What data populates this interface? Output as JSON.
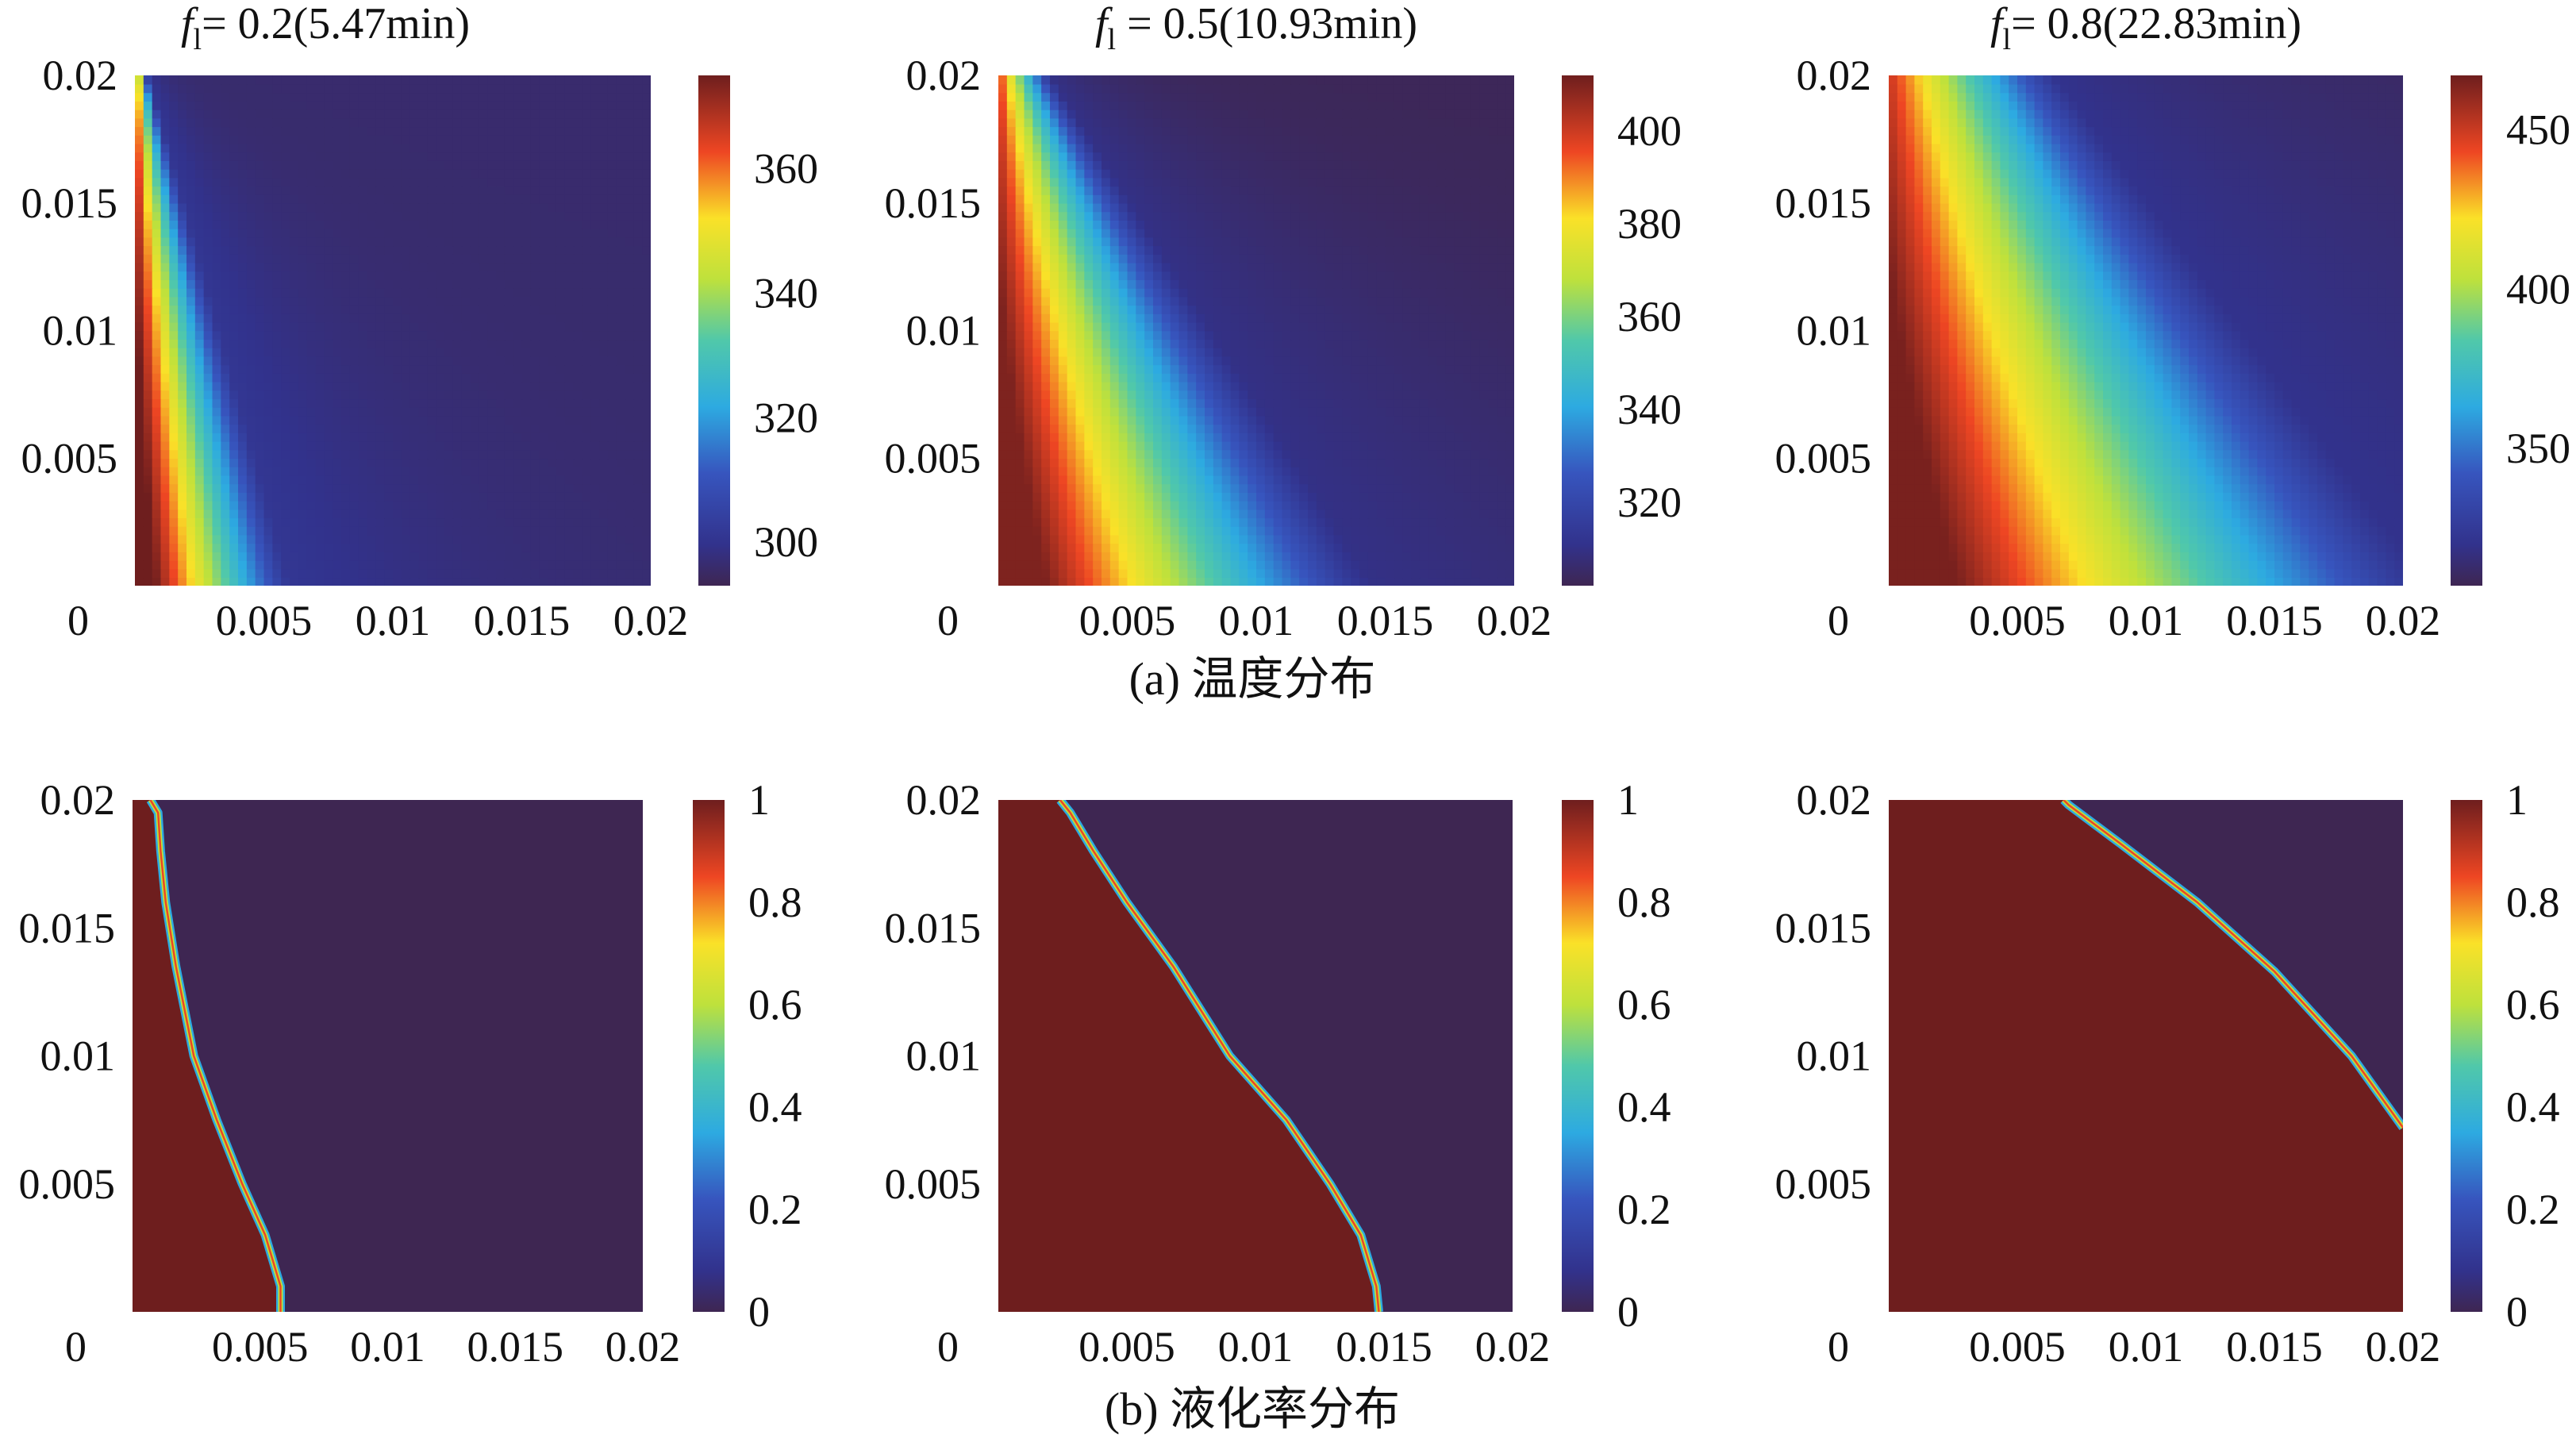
{
  "figure": {
    "captions": [
      {
        "text": "(a) 温度分布"
      },
      {
        "text": "(b) 液化率分布"
      }
    ]
  },
  "chart_data": [
    {
      "type": "heatmap",
      "title": "fl= 0.2(5.47min)",
      "title_parts": {
        "f": "f",
        "sub": "l",
        "rest": "= 0.2(5.47min)"
      },
      "quantity": "temperature",
      "x_ticks": [
        "0.005",
        "0.01",
        "0.015",
        "0.02"
      ],
      "y_ticks": [
        "0.02",
        "0.015",
        "0.01",
        "0.005"
      ],
      "origin_label": "0",
      "xlim": [
        0,
        0.02
      ],
      "ylim": [
        0,
        0.02
      ],
      "colorbar": {
        "min": 293,
        "max": 375,
        "ticks": [
          "360",
          "340",
          "320",
          "300"
        ],
        "tick_values": [
          360,
          340,
          320,
          300
        ]
      },
      "hot_corner_value": 375,
      "cold_value": 296,
      "front_x_at_bottom": 0.006,
      "front_x_at_top": 0.0005,
      "cmap": "jet-dark"
    },
    {
      "type": "heatmap",
      "title": "fl = 0.5(10.93min)",
      "title_parts": {
        "f": "f",
        "sub": "l",
        "rest": " = 0.5(10.93min)"
      },
      "quantity": "temperature",
      "x_ticks": [
        "0.005",
        "0.01",
        "0.015",
        "0.02"
      ],
      "y_ticks": [
        "0.02",
        "0.015",
        "0.01",
        "0.005"
      ],
      "origin_label": "0",
      "xlim": [
        0,
        0.02
      ],
      "ylim": [
        0,
        0.02
      ],
      "colorbar": {
        "min": 302,
        "max": 412,
        "ticks": [
          "400",
          "380",
          "360",
          "340",
          "320"
        ],
        "tick_values": [
          400,
          380,
          360,
          340,
          320
        ]
      },
      "hot_corner_value": 410,
      "cold_value": 303,
      "front_x_at_bottom": 0.0145,
      "front_x_at_top": 0.002,
      "cmap": "jet-dark"
    },
    {
      "type": "heatmap",
      "title": "fl= 0.8(22.83min)",
      "title_parts": {
        "f": "f",
        "sub": "l",
        "rest": "= 0.8(22.83min)"
      },
      "quantity": "temperature",
      "x_ticks": [
        "0.005",
        "0.01",
        "0.015",
        "0.02"
      ],
      "y_ticks": [
        "0.02",
        "0.015",
        "0.01",
        "0.005"
      ],
      "origin_label": "0",
      "xlim": [
        0,
        0.02
      ],
      "ylim": [
        0,
        0.02
      ],
      "colorbar": {
        "min": 307,
        "max": 467,
        "ticks": [
          "450",
          "400",
          "350"
        ],
        "tick_values": [
          450,
          400,
          350
        ]
      },
      "hot_corner_value": 465,
      "cold_value": 310,
      "front_x_at_bottom": 0.021,
      "front_x_at_top": 0.0065,
      "cmap": "jet-dark"
    },
    {
      "type": "heatmap",
      "quantity": "liquid fraction",
      "x_ticks": [
        "0.005",
        "0.01",
        "0.015",
        "0.02"
      ],
      "y_ticks": [
        "0.02",
        "0.015",
        "0.01",
        "0.005"
      ],
      "origin_label": "0",
      "xlim": [
        0,
        0.02
      ],
      "ylim": [
        0,
        0.02
      ],
      "colorbar": {
        "min": 0,
        "max": 1,
        "ticks": [
          "1",
          "0.8",
          "0.6",
          "0.4",
          "0.2",
          "0"
        ],
        "tick_values": [
          1,
          0.8,
          0.6,
          0.4,
          0.2,
          0
        ]
      },
      "interface": [
        [
          0.0058,
          0.0
        ],
        [
          0.0058,
          0.001
        ],
        [
          0.0052,
          0.003
        ],
        [
          0.0043,
          0.005
        ],
        [
          0.0033,
          0.0075
        ],
        [
          0.0024,
          0.01
        ],
        [
          0.0017,
          0.0135
        ],
        [
          0.0013,
          0.016
        ],
        [
          0.0011,
          0.018
        ],
        [
          0.001,
          0.0195
        ],
        [
          0.0007,
          0.02
        ]
      ],
      "cmap": "jet-dark"
    },
    {
      "type": "heatmap",
      "quantity": "liquid fraction",
      "x_ticks": [
        "0.005",
        "0.01",
        "0.015",
        "0.02"
      ],
      "y_ticks": [
        "0.02",
        "0.015",
        "0.01",
        "0.005"
      ],
      "origin_label": "0",
      "xlim": [
        0,
        0.02
      ],
      "ylim": [
        0,
        0.02
      ],
      "colorbar": {
        "min": 0,
        "max": 1,
        "ticks": [
          "1",
          "0.8",
          "0.6",
          "0.4",
          "0.2",
          "0"
        ],
        "tick_values": [
          1,
          0.8,
          0.6,
          0.4,
          0.2,
          0
        ]
      },
      "interface": [
        [
          0.0148,
          0.0
        ],
        [
          0.0147,
          0.001
        ],
        [
          0.0141,
          0.003
        ],
        [
          0.0129,
          0.005
        ],
        [
          0.0112,
          0.0075
        ],
        [
          0.009,
          0.01
        ],
        [
          0.0068,
          0.0135
        ],
        [
          0.005,
          0.016
        ],
        [
          0.0037,
          0.018
        ],
        [
          0.0028,
          0.0195
        ],
        [
          0.0024,
          0.02
        ]
      ],
      "cmap": "jet-dark"
    },
    {
      "type": "heatmap",
      "quantity": "liquid fraction",
      "x_ticks": [
        "0.005",
        "0.01",
        "0.015",
        "0.02"
      ],
      "y_ticks": [
        "0.02",
        "0.015",
        "0.01",
        "0.005"
      ],
      "origin_label": "0",
      "xlim": [
        0,
        0.02
      ],
      "ylim": [
        0,
        0.02
      ],
      "colorbar": {
        "min": 0,
        "max": 1,
        "ticks": [
          "1",
          "0.8",
          "0.6",
          "0.4",
          "0.2",
          "0"
        ],
        "tick_values": [
          1,
          0.8,
          0.6,
          0.4,
          0.2,
          0
        ]
      },
      "interface": [
        [
          0.02,
          0.0072
        ],
        [
          0.018,
          0.01
        ],
        [
          0.015,
          0.0133
        ],
        [
          0.012,
          0.016
        ],
        [
          0.009,
          0.0183
        ],
        [
          0.007,
          0.0198
        ],
        [
          0.0068,
          0.02
        ]
      ],
      "cmap": "jet-dark"
    }
  ]
}
